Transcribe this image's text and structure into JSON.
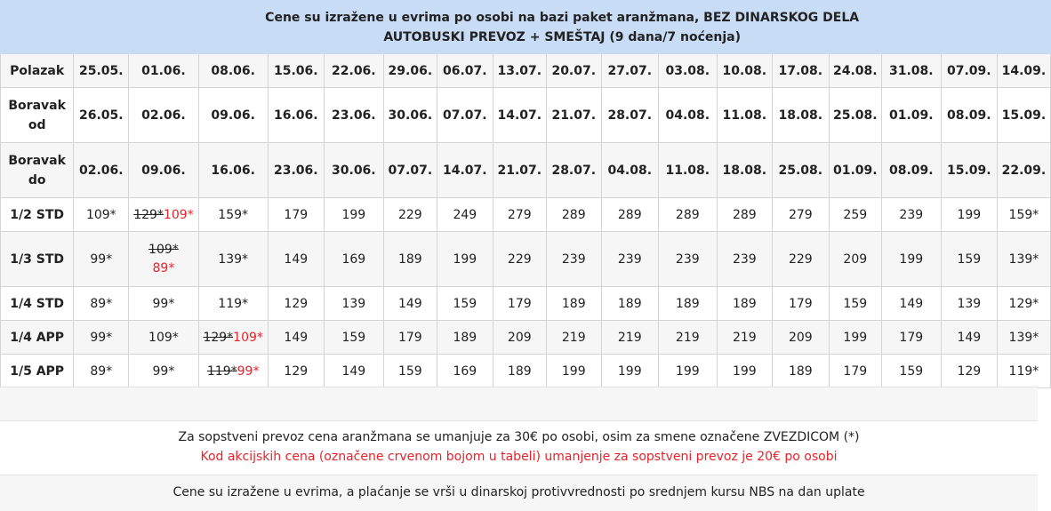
{
  "header": {
    "line1": "Cene su izražene u evrima po osobi na bazi paket aranžmana, BEZ DINARSKOG DELA",
    "line2": "AUTOBUSKI PREVOZ + SMEŠTAJ (9 dana/7 noćenja)"
  },
  "rows": [
    {
      "label": "Polazak",
      "type": "date",
      "cells": [
        "25.05.",
        "01.06.",
        "08.06.",
        "15.06.",
        "22.06.",
        "29.06.",
        "06.07.",
        "13.07.",
        "20.07.",
        "27.07.",
        "03.08.",
        "10.08.",
        "17.08.",
        "24.08.",
        "31.08.",
        "07.09.",
        "14.09."
      ]
    },
    {
      "label": "Boravak od",
      "type": "date",
      "cells": [
        "26.05.",
        "02.06.",
        "09.06.",
        "16.06.",
        "23.06.",
        "30.06.",
        "07.07.",
        "14.07.",
        "21.07.",
        "28.07.",
        "04.08.",
        "11.08.",
        "18.08.",
        "25.08.",
        "01.09.",
        "08.09.",
        "15.09."
      ]
    },
    {
      "label": "Boravak do",
      "type": "date",
      "cells": [
        "02.06.",
        "09.06.",
        "16.06.",
        "23.06.",
        "30.06.",
        "07.07.",
        "14.07.",
        "21.07.",
        "28.07.",
        "04.08.",
        "11.08.",
        "18.08.",
        "25.08.",
        "01.09.",
        "08.09.",
        "15.09.",
        "22.09."
      ]
    },
    {
      "label": "1/2 STD",
      "type": "price",
      "cells": [
        {
          "v": "109*"
        },
        {
          "old": "129*",
          "v": "109*",
          "promo": true
        },
        {
          "v": "159*"
        },
        {
          "v": "179"
        },
        {
          "v": "199"
        },
        {
          "v": "229"
        },
        {
          "v": "249"
        },
        {
          "v": "279"
        },
        {
          "v": "289"
        },
        {
          "v": "289"
        },
        {
          "v": "289"
        },
        {
          "v": "289"
        },
        {
          "v": "279"
        },
        {
          "v": "259"
        },
        {
          "v": "239"
        },
        {
          "v": "199"
        },
        {
          "v": "159*"
        }
      ]
    },
    {
      "label": "1/3 STD",
      "type": "price",
      "cells": [
        {
          "v": "99*"
        },
        {
          "old": "109*",
          "v": "89*",
          "promo": true,
          "stack": true
        },
        {
          "v": "139*"
        },
        {
          "v": "149"
        },
        {
          "v": "169"
        },
        {
          "v": "189"
        },
        {
          "v": "199"
        },
        {
          "v": "229"
        },
        {
          "v": "239"
        },
        {
          "v": "239"
        },
        {
          "v": "239"
        },
        {
          "v": "239"
        },
        {
          "v": "229"
        },
        {
          "v": "209"
        },
        {
          "v": "199"
        },
        {
          "v": "159"
        },
        {
          "v": "139*"
        }
      ]
    },
    {
      "label": "1/4 STD",
      "type": "price",
      "cells": [
        {
          "v": "89*"
        },
        {
          "v": "99*"
        },
        {
          "v": "119*"
        },
        {
          "v": "129"
        },
        {
          "v": "139"
        },
        {
          "v": "149"
        },
        {
          "v": "159"
        },
        {
          "v": "179"
        },
        {
          "v": "189"
        },
        {
          "v": "189"
        },
        {
          "v": "189"
        },
        {
          "v": "189"
        },
        {
          "v": "179"
        },
        {
          "v": "159"
        },
        {
          "v": "149"
        },
        {
          "v": "139"
        },
        {
          "v": "129*"
        }
      ]
    },
    {
      "label": "1/4 APP",
      "type": "price",
      "cells": [
        {
          "v": "99*"
        },
        {
          "v": "109*"
        },
        {
          "old": "129*",
          "v": "109*",
          "promo": true
        },
        {
          "v": "149"
        },
        {
          "v": "159"
        },
        {
          "v": "179"
        },
        {
          "v": "189"
        },
        {
          "v": "209"
        },
        {
          "v": "219"
        },
        {
          "v": "219"
        },
        {
          "v": "219"
        },
        {
          "v": "219"
        },
        {
          "v": "209"
        },
        {
          "v": "199"
        },
        {
          "v": "179"
        },
        {
          "v": "149"
        },
        {
          "v": "139*"
        }
      ]
    },
    {
      "label": "1/5 APP",
      "type": "price",
      "cells": [
        {
          "v": "89*"
        },
        {
          "v": "99*"
        },
        {
          "old": "119*",
          "v": "99*",
          "promo": true
        },
        {
          "v": "129"
        },
        {
          "v": "149"
        },
        {
          "v": "159"
        },
        {
          "v": "169"
        },
        {
          "v": "189"
        },
        {
          "v": "199"
        },
        {
          "v": "199"
        },
        {
          "v": "199"
        },
        {
          "v": "199"
        },
        {
          "v": "189"
        },
        {
          "v": "179"
        },
        {
          "v": "159"
        },
        {
          "v": "129"
        },
        {
          "v": "119*"
        }
      ]
    }
  ],
  "footer": {
    "note1": "Za sopstveni prevoz cena aranžmana se umanjuje za 30€ po osobi, osim za smene označene ZVEZDICOM (*)",
    "note2": "Kod akcijskih cena (označene crvenom bojom u tabeli) umanjenje za sopstveni prevoz je 20€ po osobi",
    "note3": "Cene su izražene u evrima, a plaćanje se vrši u dinarskoj protivvrednosti po srednjem kursu NBS na dan uplate"
  },
  "colors": {
    "header_bg": "#c9dcf6",
    "promo": "#e8222a",
    "alt_bg": "#f6f6f6"
  }
}
